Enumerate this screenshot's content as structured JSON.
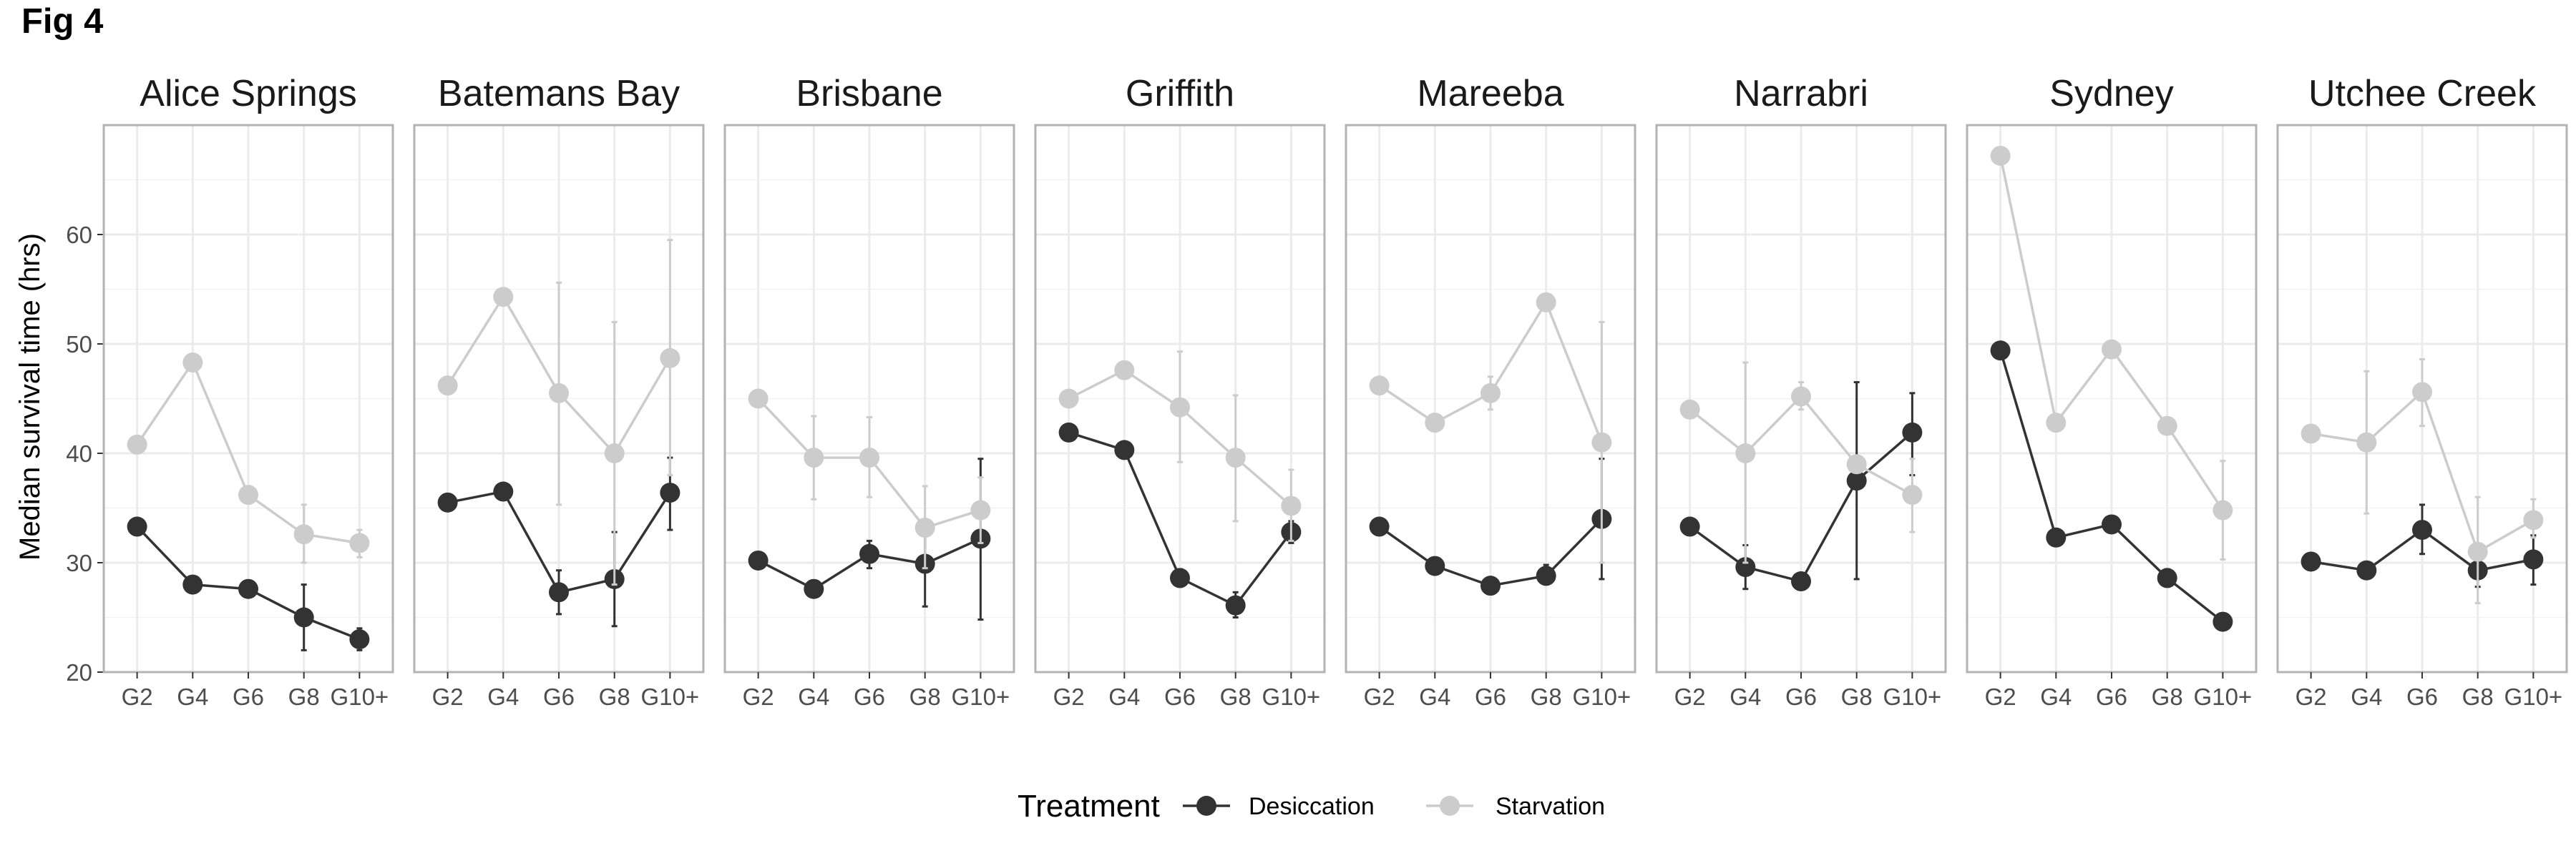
{
  "figure_label": "Fig 4",
  "chart_data": {
    "type": "line",
    "facet_by": "site",
    "ylabel": "Median survival time (hrs)",
    "xlabel": "",
    "categories": [
      "G2",
      "G4",
      "G6",
      "G8",
      "G10+"
    ],
    "y_ticks": [
      20,
      30,
      40,
      50,
      60
    ],
    "ylim": [
      20,
      70
    ],
    "grid": true,
    "legend": {
      "title": "Treatment",
      "placement": "bottom",
      "entries": [
        "Desiccation",
        "Starvation"
      ]
    },
    "colors": {
      "Desiccation": "#333333",
      "Starvation": "#cccccc"
    },
    "panels": [
      {
        "title": "Alice Springs",
        "series": [
          {
            "name": "Desiccation",
            "values": [
              33.3,
              28.0,
              27.6,
              25.0,
              23.0
            ],
            "error": [
              null,
              null,
              null,
              [
                22.0,
                28.0
              ],
              [
                22.0,
                24.0
              ]
            ]
          },
          {
            "name": "Starvation",
            "values": [
              40.8,
              48.3,
              36.2,
              32.6,
              31.8
            ],
            "error": [
              null,
              null,
              null,
              [
                30.0,
                35.3
              ],
              [
                30.5,
                33.0
              ]
            ]
          }
        ]
      },
      {
        "title": "Batemans Bay",
        "series": [
          {
            "name": "Desiccation",
            "values": [
              35.5,
              36.5,
              27.3,
              28.5,
              36.4
            ],
            "error": [
              null,
              null,
              [
                25.3,
                29.3
              ],
              [
                24.2,
                32.8
              ],
              [
                33.0,
                39.6
              ]
            ]
          },
          {
            "name": "Starvation",
            "values": [
              46.2,
              54.3,
              45.5,
              40.0,
              48.7
            ],
            "error": [
              null,
              null,
              [
                35.3,
                55.6
              ],
              [
                28.0,
                52.0
              ],
              [
                38.0,
                59.5
              ]
            ]
          }
        ]
      },
      {
        "title": "Brisbane",
        "series": [
          {
            "name": "Desiccation",
            "values": [
              30.2,
              27.6,
              30.8,
              29.9,
              32.2
            ],
            "error": [
              null,
              null,
              [
                29.5,
                32.0
              ],
              [
                26.0,
                33.8
              ],
              [
                24.8,
                39.5
              ]
            ]
          },
          {
            "name": "Starvation",
            "values": [
              45.0,
              39.6,
              39.6,
              33.2,
              34.8
            ],
            "error": [
              null,
              [
                35.8,
                43.4
              ],
              [
                36.0,
                43.3
              ],
              [
                29.5,
                37.0
              ],
              [
                31.8,
                37.8
              ]
            ]
          }
        ]
      },
      {
        "title": "Griffith",
        "series": [
          {
            "name": "Desiccation",
            "values": [
              41.9,
              40.3,
              28.6,
              26.1,
              32.8
            ],
            "error": [
              null,
              null,
              [
                27.8,
                29.4
              ],
              [
                25.0,
                27.3
              ],
              [
                31.8,
                33.8
              ]
            ]
          },
          {
            "name": "Starvation",
            "values": [
              45.0,
              47.6,
              44.2,
              39.6,
              35.2
            ],
            "error": [
              null,
              null,
              [
                39.2,
                49.3
              ],
              [
                33.8,
                45.3
              ],
              [
                32.0,
                38.5
              ]
            ]
          }
        ]
      },
      {
        "title": "Mareeba",
        "series": [
          {
            "name": "Desiccation",
            "values": [
              33.3,
              29.7,
              27.9,
              28.8,
              34.0
            ],
            "error": [
              null,
              null,
              null,
              [
                28.0,
                29.8
              ],
              [
                28.5,
                39.5
              ]
            ]
          },
          {
            "name": "Starvation",
            "values": [
              46.2,
              42.8,
              45.5,
              53.8,
              41.0
            ],
            "error": [
              null,
              null,
              [
                44.0,
                47.0
              ],
              null,
              [
                30.0,
                52.0
              ]
            ]
          }
        ]
      },
      {
        "title": "Narrabri",
        "series": [
          {
            "name": "Desiccation",
            "values": [
              33.3,
              29.6,
              28.3,
              37.5,
              41.9
            ],
            "error": [
              null,
              [
                27.6,
                31.6
              ],
              null,
              [
                28.5,
                46.5
              ],
              [
                38.0,
                45.5
              ]
            ]
          },
          {
            "name": "Starvation",
            "values": [
              44.0,
              40.0,
              45.2,
              39.0,
              36.2
            ],
            "error": [
              null,
              [
                30.0,
                48.3
              ],
              [
                44.0,
                46.5
              ],
              null,
              [
                32.8,
                39.5
              ]
            ]
          }
        ]
      },
      {
        "title": "Sydney",
        "series": [
          {
            "name": "Desiccation",
            "values": [
              49.4,
              32.3,
              33.5,
              28.6,
              24.6
            ],
            "error": [
              null,
              null,
              null,
              [
                27.8,
                29.4
              ],
              null
            ]
          },
          {
            "name": "Starvation",
            "values": [
              67.2,
              42.8,
              49.5,
              42.5,
              34.8
            ],
            "error": [
              null,
              null,
              null,
              null,
              [
                30.3,
                39.3
              ]
            ]
          }
        ]
      },
      {
        "title": "Utchee Creek",
        "series": [
          {
            "name": "Desiccation",
            "values": [
              30.1,
              29.3,
              33.0,
              29.3,
              30.3
            ],
            "error": [
              null,
              null,
              [
                30.8,
                35.3
              ],
              [
                27.8,
                30.8
              ],
              [
                28.0,
                32.5
              ]
            ]
          },
          {
            "name": "Starvation",
            "values": [
              41.8,
              41.0,
              45.6,
              31.0,
              33.9
            ],
            "error": [
              null,
              [
                34.5,
                47.5
              ],
              [
                42.5,
                48.6
              ],
              [
                26.3,
                36.0
              ],
              [
                32.3,
                35.8
              ]
            ]
          }
        ]
      }
    ]
  }
}
